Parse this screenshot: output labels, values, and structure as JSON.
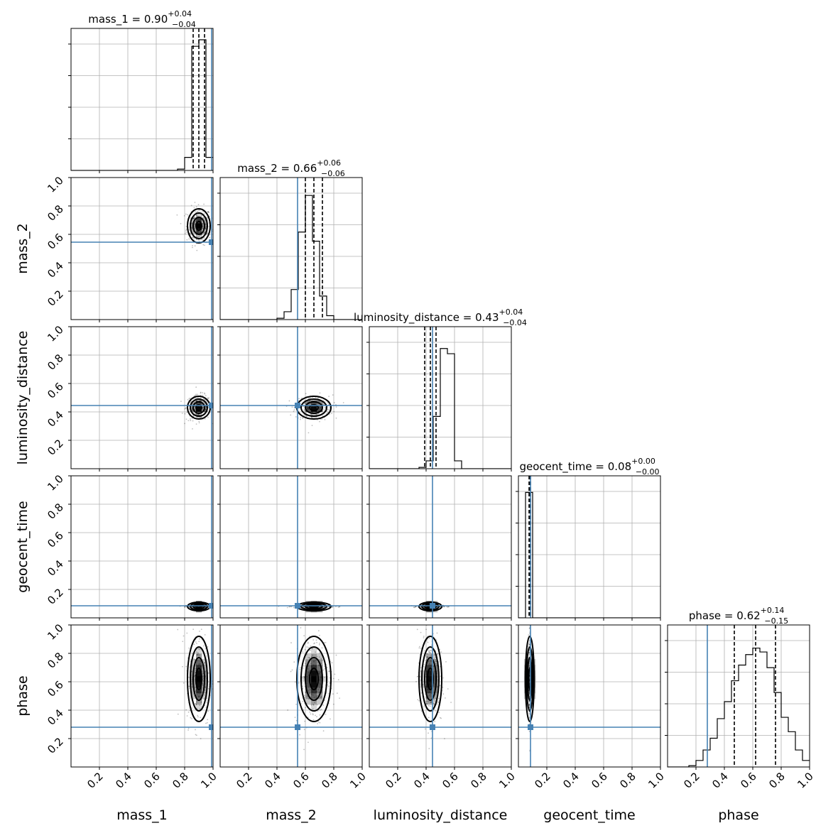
{
  "chart_data": {
    "type": "corner",
    "parameters": [
      "mass_1",
      "mass_2",
      "luminosity_distance",
      "geocent_time",
      "phase"
    ],
    "axis_range": [
      0,
      1
    ],
    "tick_labels": [
      "0.2",
      "0.4",
      "0.6",
      "0.8",
      "1.0"
    ],
    "tick_values": [
      0.2,
      0.4,
      0.6,
      0.8,
      1.0
    ],
    "grid": true,
    "truth_color": "#4682b4",
    "truths": {
      "mass_1": 0.99,
      "mass_2": 0.545,
      "luminosity_distance": 0.445,
      "geocent_time": 0.085,
      "phase": 0.28
    },
    "titles": {
      "mass_1": {
        "name": "mass_1",
        "median": "0.90",
        "plus": "+0.04",
        "minus": "−0.04"
      },
      "mass_2": {
        "name": "mass_2",
        "median": "0.66",
        "plus": "+0.06",
        "minus": "−0.06"
      },
      "luminosity_distance": {
        "name": "luminosity_distance",
        "median": "0.43",
        "plus": "+0.04",
        "minus": "−0.04"
      },
      "geocent_time": {
        "name": "geocent_time",
        "median": "0.08",
        "plus": "+0.00",
        "minus": "−0.00"
      },
      "phase": {
        "name": "phase",
        "median": "0.62",
        "plus": "+0.14",
        "minus": "−0.15"
      }
    },
    "quantiles": {
      "mass_1": [
        0.86,
        0.9,
        0.94
      ],
      "mass_2": [
        0.6,
        0.66,
        0.72
      ],
      "luminosity_distance": [
        0.39,
        0.43,
        0.47
      ],
      "geocent_time": [
        0.075,
        0.08,
        0.085
      ],
      "phase": [
        0.47,
        0.62,
        0.76
      ]
    },
    "posterior": {
      "mass_1": {
        "mean": 0.9,
        "sd": 0.04
      },
      "mass_2": {
        "mean": 0.66,
        "sd": 0.06
      },
      "luminosity_distance": {
        "mean": 0.43,
        "sd": 0.04
      },
      "geocent_time": {
        "mean": 0.08,
        "sd": 0.004
      },
      "phase": {
        "mean": 0.62,
        "sd": 0.15
      }
    },
    "histograms": {
      "mass_1": {
        "bin_width": 0.05,
        "counts": [
          0,
          0,
          0,
          0,
          0,
          0,
          0,
          0,
          0,
          0,
          0,
          0,
          0,
          0,
          0,
          0.01,
          0.1,
          0.95,
          1.0,
          0.1
        ]
      },
      "mass_2": {
        "bin_width": 0.05,
        "counts": [
          0,
          0,
          0,
          0,
          0,
          0,
          0,
          0,
          0.01,
          0.06,
          0.23,
          0.67,
          0.95,
          0.6,
          0.18,
          0.03,
          0,
          0,
          0,
          0
        ]
      },
      "luminosity_distance": {
        "bin_width": 0.05,
        "counts": [
          0,
          0,
          0,
          0,
          0,
          0,
          0,
          0.01,
          0.06,
          0.4,
          0.92,
          0.88,
          0.06,
          0,
          0,
          0,
          0,
          0,
          0,
          0
        ]
      },
      "geocent_time": {
        "bin_width": 0.05,
        "counts": [
          0,
          0.96,
          0,
          0,
          0,
          0,
          0,
          0,
          0,
          0,
          0,
          0,
          0,
          0,
          0,
          0,
          0,
          0,
          0,
          0
        ]
      },
      "phase": {
        "bin_width": 0.05,
        "counts": [
          0,
          0,
          0,
          0.01,
          0.05,
          0.13,
          0.22,
          0.37,
          0.5,
          0.66,
          0.78,
          0.86,
          0.91,
          0.88,
          0.76,
          0.57,
          0.38,
          0.27,
          0.13,
          0.05
        ]
      }
    }
  }
}
